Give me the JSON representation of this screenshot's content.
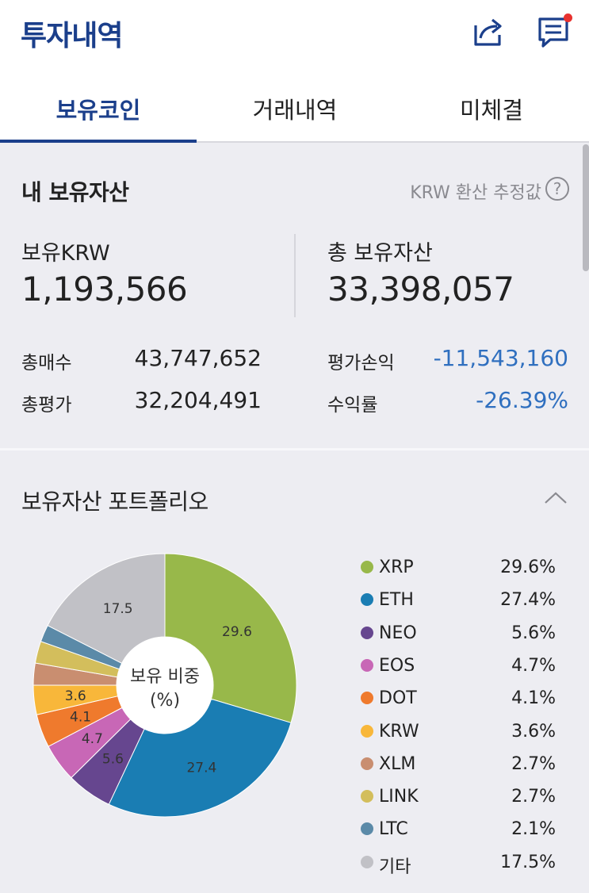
{
  "header": {
    "title": "투자내역",
    "share_icon": "share-icon",
    "chat_icon": "chat-icon"
  },
  "tabs": [
    {
      "label": "보유코인",
      "active": true
    },
    {
      "label": "거래내역",
      "active": false
    },
    {
      "label": "미체결",
      "active": false
    }
  ],
  "assets": {
    "title": "내 보유자산",
    "note": "KRW 환산 추정값",
    "help_icon": "?",
    "krw_label": "보유KRW",
    "krw_value": "1,193,566",
    "total_label": "총 보유자산",
    "total_value": "33,398,057",
    "buy_label": "총매수",
    "buy_value": "43,747,652",
    "eval_label": "총평가",
    "eval_value": "32,204,491",
    "pl_label": "평가손익",
    "pl_value": "-11,543,160",
    "rate_label": "수익률",
    "rate_value": "-26.39%"
  },
  "portfolio": {
    "title": "보유자산 포트폴리오",
    "center_line1": "보유 비중",
    "center_line2": "(%)"
  },
  "chart_data": {
    "type": "pie",
    "categories": [
      "XRP",
      "ETH",
      "NEO",
      "EOS",
      "DOT",
      "KRW",
      "XLM",
      "LINK",
      "LTC",
      "기타"
    ],
    "values": [
      29.6,
      27.4,
      5.6,
      4.7,
      4.1,
      3.6,
      2.7,
      2.7,
      2.1,
      17.5
    ],
    "labels": [
      "29.6%",
      "27.4%",
      "5.6%",
      "4.7%",
      "4.1%",
      "3.6%",
      "2.7%",
      "2.7%",
      "2.1%",
      "17.5%"
    ],
    "slice_labels": [
      "29.6",
      "27.4",
      "5.6",
      "4.7",
      "4.1",
      "3.6",
      "",
      "",
      "",
      "17.5"
    ],
    "colors": [
      "#98b84a",
      "#1a7db3",
      "#66468f",
      "#c867b6",
      "#ef7a2d",
      "#f8b73a",
      "#c98e70",
      "#d3be5c",
      "#5b8aa8",
      "#c1c1c6"
    ],
    "legend_position": "right"
  }
}
